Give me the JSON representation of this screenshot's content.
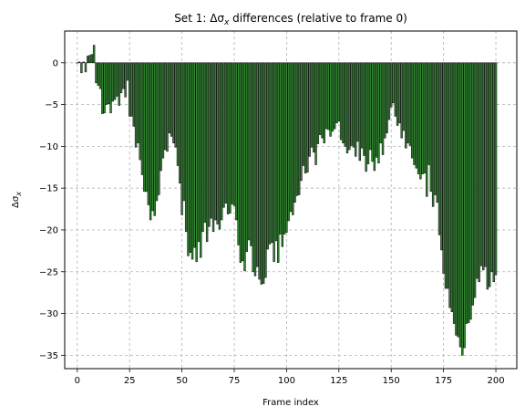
{
  "chart_data": {
    "type": "bar",
    "title_prefix": "Set 1: Δσ",
    "title_sub": "x",
    "title_suffix": " differences (relative to frame 0)",
    "xlabel": "Frame index",
    "ylabel_main": "Δσ",
    "ylabel_sub": "x",
    "xlim": [
      -6,
      210
    ],
    "ylim": [
      -36.6,
      3.8
    ],
    "xticks": [
      0,
      25,
      50,
      75,
      100,
      125,
      150,
      175,
      200
    ],
    "yticks": [
      0,
      -5,
      -10,
      -15,
      -20,
      -25,
      -30,
      -35
    ],
    "grid": true,
    "bar_color": "#2e8b2e",
    "edge_color": "#1a1a1a",
    "x_start": 0,
    "values": [
      0.0,
      0.1,
      -1.2,
      0.1,
      -1.1,
      0.8,
      0.9,
      1.0,
      2.1,
      -2.4,
      -2.7,
      -3.1,
      -6.1,
      -6.0,
      -5.0,
      -4.9,
      -6.0,
      -4.6,
      -4.4,
      -4.0,
      -5.1,
      -3.6,
      -3.1,
      -4.1,
      -2.1,
      -6.4,
      -6.4,
      -7.6,
      -10.1,
      -9.6,
      -11.6,
      -13.4,
      -15.4,
      -15.4,
      -17.0,
      -18.8,
      -17.7,
      -18.3,
      -16.5,
      -15.8,
      -12.9,
      -11.4,
      -10.4,
      -10.6,
      -8.4,
      -8.8,
      -9.6,
      -10.1,
      -12.3,
      -14.4,
      -18.2,
      -16.5,
      -20.2,
      -23.1,
      -22.7,
      -23.5,
      -22.1,
      -23.8,
      -21.4,
      -23.3,
      -20.2,
      -19.1,
      -21.4,
      -19.6,
      -18.6,
      -20.2,
      -18.8,
      -19.3,
      -19.9,
      -18.8,
      -17.3,
      -16.8,
      -18.1,
      -18.0,
      -16.9,
      -17.1,
      -18.8,
      -21.8,
      -23.9,
      -23.7,
      -24.9,
      -22.6,
      -21.2,
      -21.9,
      -25.0,
      -25.5,
      -24.4,
      -25.9,
      -26.5,
      -26.4,
      -25.7,
      -22.3,
      -21.7,
      -21.5,
      -23.8,
      -21.3,
      -23.9,
      -20.5,
      -22.0,
      -20.5,
      -20.3,
      -18.9,
      -17.8,
      -18.2,
      -16.7,
      -15.9,
      -15.8,
      -14.1,
      -12.3,
      -13.2,
      -13.1,
      -11.2,
      -10.1,
      -10.7,
      -12.2,
      -9.7,
      -8.6,
      -9.0,
      -9.6,
      -7.9,
      -8.0,
      -8.8,
      -8.2,
      -7.9,
      -7.2,
      -7.0,
      -9.2,
      -9.6,
      -10.0,
      -10.8,
      -10.4,
      -9.9,
      -10.1,
      -11.2,
      -9.4,
      -11.7,
      -10.2,
      -11.1,
      -13.0,
      -12.1,
      -10.4,
      -11.8,
      -12.9,
      -11.3,
      -12.0,
      -9.6,
      -11.0,
      -9.0,
      -8.4,
      -6.8,
      -5.3,
      -4.8,
      -6.4,
      -7.5,
      -7.2,
      -9.0,
      -8.1,
      -10.2,
      -9.6,
      -9.9,
      -11.4,
      -12.2,
      -12.6,
      -13.3,
      -13.9,
      -13.3,
      -13.2,
      -16.0,
      -12.2,
      -15.4,
      -17.2,
      -15.8,
      -16.7,
      -20.6,
      -22.4,
      -25.2,
      -27.0,
      -27.0,
      -29.3,
      -29.8,
      -31.2,
      -32.6,
      -32.8,
      -34.0,
      -35.0,
      -34.1,
      -31.2,
      -31.1,
      -30.7,
      -29.0,
      -28.1,
      -25.8,
      -26.2,
      -24.3,
      -24.8,
      -24.4,
      -27.1,
      -26.8,
      -25.0,
      -26.2,
      -25.4
    ]
  }
}
